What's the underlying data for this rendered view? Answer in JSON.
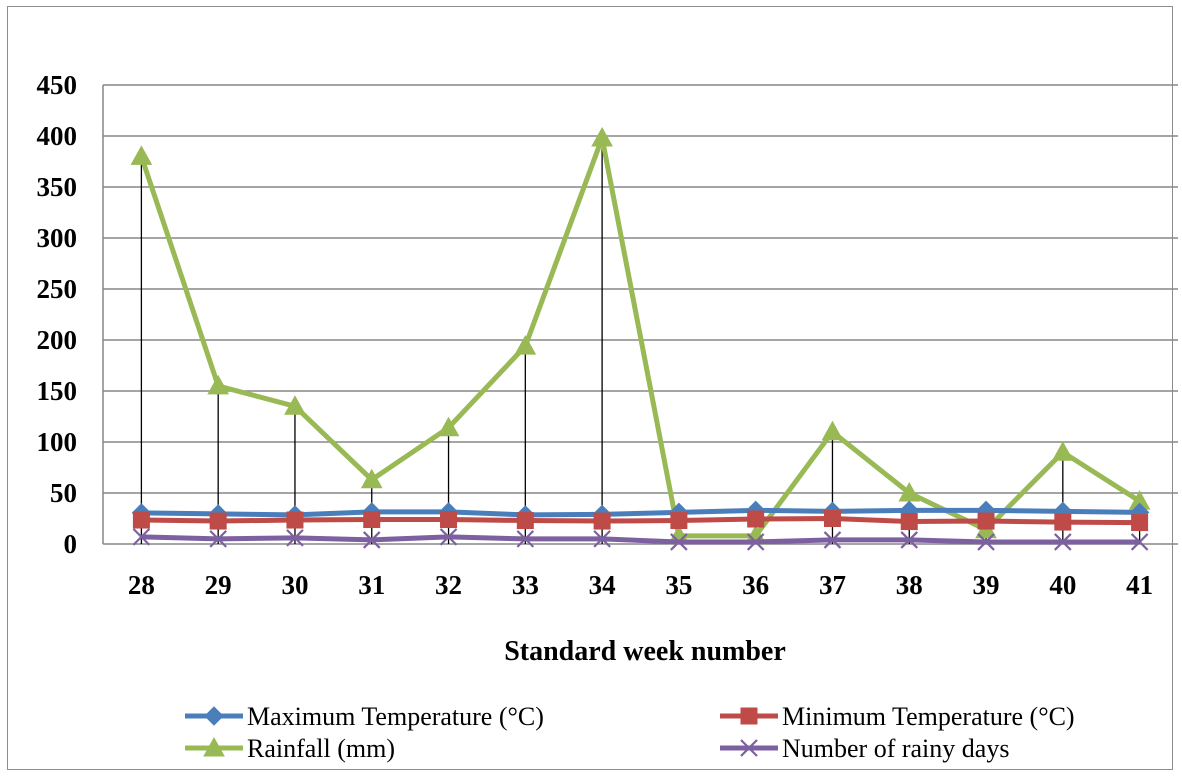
{
  "chart_data": {
    "type": "line",
    "title": "",
    "xlabel": "Standard week number",
    "ylabel": "",
    "ylim": [
      0,
      450
    ],
    "yticks": [
      0,
      50,
      100,
      150,
      200,
      250,
      300,
      350,
      400,
      450
    ],
    "categories": [
      "28",
      "29",
      "30",
      "31",
      "32",
      "33",
      "34",
      "35",
      "36",
      "37",
      "38",
      "39",
      "40",
      "41"
    ],
    "grid": "horizontal",
    "legend_position": "bottom",
    "drop_lines": true,
    "series": [
      {
        "name": "Maximum Temperature (°C)",
        "color": "#4a7ebb",
        "marker": "diamond",
        "values": [
          30.5,
          29.5,
          28.5,
          31.5,
          31.5,
          28.5,
          29,
          31,
          33,
          32,
          33,
          33,
          32,
          31
        ]
      },
      {
        "name": "Minimum Temperature (°C)",
        "color": "#be4b48",
        "marker": "square",
        "values": [
          23.5,
          22.5,
          23.5,
          24,
          24,
          23,
          22.5,
          23,
          24.5,
          25,
          22,
          22.5,
          21.5,
          21
        ]
      },
      {
        "name": "Rainfall (mm)",
        "color": "#98b954",
        "marker": "triangle",
        "values": [
          380,
          155,
          135,
          63,
          114,
          194,
          398,
          8,
          8,
          110,
          50,
          14,
          90,
          42
        ]
      },
      {
        "name": "Number of rainy days",
        "color": "#7d60a0",
        "marker": "x",
        "values": [
          7,
          5,
          6,
          4,
          7,
          5,
          5,
          2,
          2,
          4,
          4,
          2,
          2,
          2
        ]
      }
    ]
  }
}
